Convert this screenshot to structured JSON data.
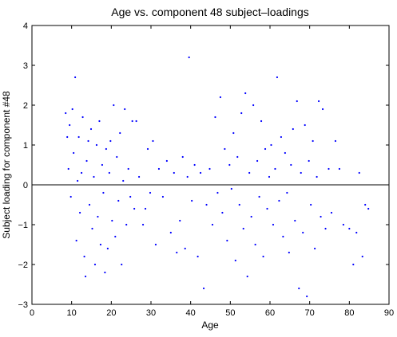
{
  "chart_data": {
    "type": "scatter",
    "title": "Age vs. component 48 subject–loadings",
    "xlabel": "Age",
    "ylabel": "Subject loading for component #48",
    "xlim": [
      0,
      90
    ],
    "ylim": [
      -3,
      4
    ],
    "xticks": [
      0,
      10,
      20,
      30,
      40,
      50,
      60,
      70,
      80,
      90
    ],
    "yticks": [
      -3,
      -2,
      -1,
      0,
      1,
      2,
      3,
      4
    ],
    "xtick_labels": [
      "0",
      "10",
      "20",
      "30",
      "40",
      "50",
      "60",
      "70",
      "80",
      "90"
    ],
    "ytick_labels": [
      "−3",
      "−2",
      "−1",
      "0",
      "1",
      "2",
      "3",
      "4"
    ],
    "reference_line_y": 0,
    "grid": false,
    "point_color": "#0000ff",
    "points": [
      [
        8.5,
        1.8
      ],
      [
        8.9,
        1.2
      ],
      [
        9.2,
        0.4
      ],
      [
        9.5,
        1.5
      ],
      [
        9.8,
        -0.3
      ],
      [
        10.2,
        1.9
      ],
      [
        10.5,
        0.8
      ],
      [
        10.9,
        2.7
      ],
      [
        11.2,
        -1.4
      ],
      [
        11.5,
        0.1
      ],
      [
        11.8,
        1.2
      ],
      [
        12.1,
        -0.7
      ],
      [
        12.5,
        0.3
      ],
      [
        12.8,
        1.7
      ],
      [
        13.2,
        -1.8
      ],
      [
        13.5,
        -2.3
      ],
      [
        13.8,
        0.6
      ],
      [
        14.2,
        1.1
      ],
      [
        14.5,
        -0.5
      ],
      [
        14.9,
        1.4
      ],
      [
        15.2,
        -1.1
      ],
      [
        15.6,
        0.2
      ],
      [
        15.9,
        -2.0
      ],
      [
        16.3,
        1.0
      ],
      [
        16.6,
        -0.8
      ],
      [
        17.0,
        1.6
      ],
      [
        17.3,
        -1.5
      ],
      [
        17.7,
        0.5
      ],
      [
        18.0,
        -0.2
      ],
      [
        18.4,
        -2.2
      ],
      [
        18.7,
        0.9
      ],
      [
        19.1,
        -1.6
      ],
      [
        19.5,
        0.3
      ],
      [
        19.8,
        1.1
      ],
      [
        20.2,
        -0.9
      ],
      [
        20.6,
        2.0
      ],
      [
        21.0,
        -1.3
      ],
      [
        21.4,
        0.7
      ],
      [
        21.8,
        -0.4
      ],
      [
        22.2,
        1.3
      ],
      [
        22.6,
        -2.0
      ],
      [
        23.0,
        0.1
      ],
      [
        23.4,
        1.9
      ],
      [
        23.8,
        -1.0
      ],
      [
        24.3,
        0.4
      ],
      [
        24.8,
        -0.3
      ],
      [
        25.3,
        1.6
      ],
      [
        25.8,
        -0.6
      ],
      [
        26.3,
        1.6
      ],
      [
        27.0,
        0.2
      ],
      [
        28.0,
        -1.0
      ],
      [
        28.6,
        -0.6
      ],
      [
        29.2,
        0.9
      ],
      [
        29.8,
        -0.2
      ],
      [
        30.5,
        1.1
      ],
      [
        31.2,
        -1.5
      ],
      [
        32.0,
        0.4
      ],
      [
        33.0,
        -0.3
      ],
      [
        34.0,
        0.6
      ],
      [
        35.0,
        -1.2
      ],
      [
        35.8,
        0.3
      ],
      [
        36.5,
        -1.7
      ],
      [
        37.3,
        -0.9
      ],
      [
        38.0,
        0.7
      ],
      [
        38.6,
        -1.6
      ],
      [
        39.2,
        0.2
      ],
      [
        39.6,
        3.2
      ],
      [
        40.3,
        -0.4
      ],
      [
        41.0,
        0.5
      ],
      [
        41.8,
        -1.8
      ],
      [
        42.5,
        0.3
      ],
      [
        43.3,
        -2.6
      ],
      [
        44.0,
        -0.5
      ],
      [
        44.8,
        0.4
      ],
      [
        45.5,
        -1.0
      ],
      [
        46.2,
        1.7
      ],
      [
        46.8,
        -0.2
      ],
      [
        47.5,
        2.2
      ],
      [
        48.0,
        -0.7
      ],
      [
        48.6,
        0.9
      ],
      [
        49.2,
        -1.4
      ],
      [
        49.8,
        0.5
      ],
      [
        50.3,
        -0.1
      ],
      [
        50.8,
        1.3
      ],
      [
        51.3,
        -1.9
      ],
      [
        51.8,
        0.7
      ],
      [
        52.3,
        -0.5
      ],
      [
        52.8,
        1.8
      ],
      [
        53.3,
        -1.1
      ],
      [
        53.8,
        2.3
      ],
      [
        54.3,
        -2.3
      ],
      [
        54.8,
        0.3
      ],
      [
        55.3,
        -0.8
      ],
      [
        55.8,
        2.0
      ],
      [
        56.3,
        -1.5
      ],
      [
        56.8,
        0.6
      ],
      [
        57.3,
        -0.3
      ],
      [
        57.8,
        1.6
      ],
      [
        58.3,
        -1.8
      ],
      [
        58.8,
        0.9
      ],
      [
        59.3,
        -0.6
      ],
      [
        59.8,
        0.2
      ],
      [
        60.3,
        1.0
      ],
      [
        60.8,
        -1.0
      ],
      [
        61.3,
        0.4
      ],
      [
        61.8,
        2.7
      ],
      [
        62.3,
        -0.4
      ],
      [
        62.8,
        1.2
      ],
      [
        63.3,
        -1.3
      ],
      [
        63.8,
        0.8
      ],
      [
        64.3,
        -0.2
      ],
      [
        64.8,
        -1.7
      ],
      [
        65.3,
        0.5
      ],
      [
        65.8,
        1.4
      ],
      [
        66.3,
        -0.9
      ],
      [
        66.8,
        2.1
      ],
      [
        67.3,
        -2.6
      ],
      [
        67.8,
        0.3
      ],
      [
        68.3,
        -1.2
      ],
      [
        68.8,
        1.5
      ],
      [
        69.3,
        -2.8
      ],
      [
        69.8,
        0.6
      ],
      [
        70.3,
        -0.5
      ],
      [
        70.8,
        1.1
      ],
      [
        71.3,
        -1.6
      ],
      [
        71.8,
        0.2
      ],
      [
        72.3,
        2.1
      ],
      [
        72.8,
        -0.8
      ],
      [
        73.3,
        1.9
      ],
      [
        74.0,
        -1.1
      ],
      [
        74.8,
        0.4
      ],
      [
        75.5,
        -0.7
      ],
      [
        76.5,
        1.1
      ],
      [
        77.5,
        0.4
      ],
      [
        78.5,
        -1.0
      ],
      [
        80.0,
        -1.1
      ],
      [
        81.0,
        -2.0
      ],
      [
        81.8,
        -1.2
      ],
      [
        82.5,
        0.3
      ],
      [
        83.3,
        -1.8
      ],
      [
        84.0,
        -0.5
      ],
      [
        84.8,
        -0.6
      ]
    ]
  }
}
